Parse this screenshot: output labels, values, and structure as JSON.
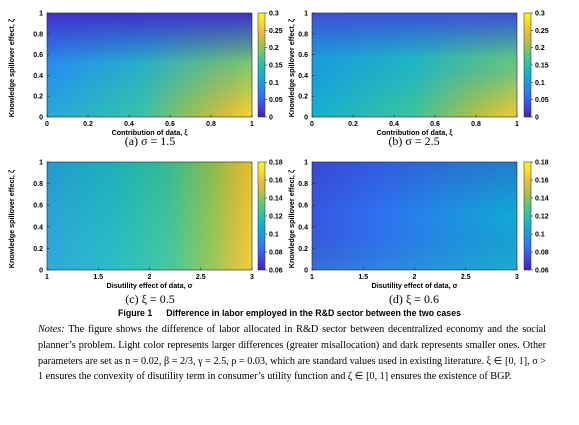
{
  "panels": [
    {
      "id": "a",
      "caption": "(a) σ = 1.5",
      "xlabel": "Contribution of data, ξ",
      "ylabel": "Knowledge spillover effect, ζ",
      "xticks": [
        "0",
        "0.2",
        "0.4",
        "0.6",
        "0.8",
        "1"
      ],
      "yticks": [
        "0",
        "0.2",
        "0.4",
        "0.6",
        "0.8",
        "1"
      ],
      "cbar_ticks": [
        "0.3",
        "0.25",
        "0.2",
        "0.15",
        "0.1",
        "0.05",
        "0"
      ]
    },
    {
      "id": "b",
      "caption": "(b) σ = 2.5",
      "xlabel": "Contribution of data, ξ",
      "ylabel": "Knowledge spillover effect, ζ",
      "xticks": [
        "0",
        "0.2",
        "0.4",
        "0.6",
        "0.8",
        "1"
      ],
      "yticks": [
        "0",
        "0.2",
        "0.4",
        "0.6",
        "0.8",
        "1"
      ],
      "cbar_ticks": [
        "0.3",
        "0.25",
        "0.2",
        "0.15",
        "0.1",
        "0.05",
        "0"
      ]
    },
    {
      "id": "c",
      "caption": "(c) ξ = 0.5",
      "xlabel": "Disutility effect of data, σ",
      "ylabel": "Knowledge spillover effect, ζ",
      "xticks": [
        "1",
        "1.5",
        "2",
        "2.5",
        "3"
      ],
      "yticks": [
        "0",
        "0.2",
        "0.4",
        "0.6",
        "0.8",
        "1"
      ],
      "cbar_ticks": [
        "0.18",
        "0.16",
        "0.14",
        "0.12",
        "0.1",
        "0.08",
        "0.06"
      ]
    },
    {
      "id": "d",
      "caption": "(d) ξ = 0.6",
      "xlabel": "Disutility effect of data, σ",
      "ylabel": "Knowledge spillover effect, ζ",
      "xticks": [
        "1",
        "1.5",
        "2",
        "2.5",
        "3"
      ],
      "yticks": [
        "0",
        "0.2",
        "0.4",
        "0.6",
        "0.8",
        "1"
      ],
      "cbar_ticks": [
        "0.18",
        "0.16",
        "0.14",
        "0.12",
        "0.1",
        "0.08",
        "0.06"
      ]
    }
  ],
  "figure": {
    "label": "Figure 1",
    "title": "Difference in labor employed in the R&D sector between the two cases"
  },
  "notes": {
    "lead": "Notes:",
    "body": "The figure shows the difference of labor allocated in R&D sector between decentralized economy and the social planner’s problem. Light color represents larger differences (greater misallocation) and dark represents smaller ones. Other parameters are set as n = 0.02, β = 2/3, γ = 2.5, ρ = 0.03, which are standard values used in existing literature. ξ ∈ [0, 1], σ > 1 ensures the convexity of disutility term in consumer’s utility function and ζ ∈ [0, 1] ensures the existence of BGP."
  },
  "colors": {
    "colormap": [
      "#3e26a8",
      "#4143e9",
      "#2f6ffb",
      "#1d92e6",
      "#0bb1d1",
      "#22c4a8",
      "#5ac87c",
      "#a8c244",
      "#e6bb35",
      "#fbd729",
      "#f9fb15"
    ]
  }
}
